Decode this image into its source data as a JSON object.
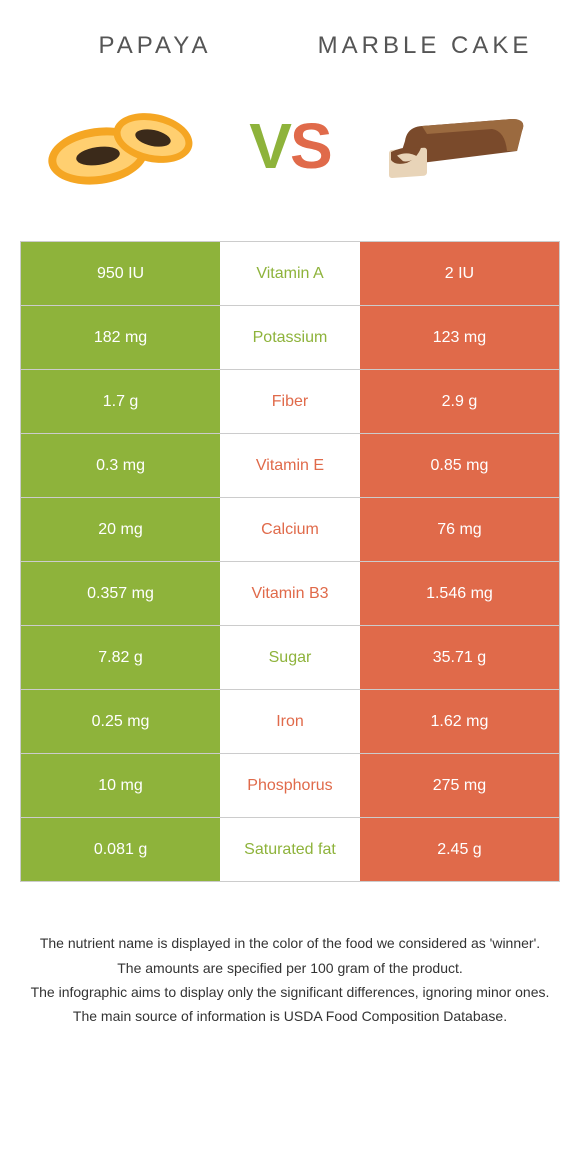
{
  "header": {
    "food_a": "Papaya",
    "food_b": "Marble cake",
    "vs_v": "V",
    "vs_s": "S"
  },
  "colors": {
    "green": "#8eb33b",
    "orange": "#e06a4a",
    "border": "#cccccc",
    "text": "#333333",
    "header_text": "#555555"
  },
  "table": {
    "rows": [
      {
        "left": "950 IU",
        "mid": "Vitamin A",
        "right": "2 IU",
        "winner": "a"
      },
      {
        "left": "182 mg",
        "mid": "Potassium",
        "right": "123 mg",
        "winner": "a"
      },
      {
        "left": "1.7 g",
        "mid": "Fiber",
        "right": "2.9 g",
        "winner": "b"
      },
      {
        "left": "0.3 mg",
        "mid": "Vitamin E",
        "right": "0.85 mg",
        "winner": "b"
      },
      {
        "left": "20 mg",
        "mid": "Calcium",
        "right": "76 mg",
        "winner": "b"
      },
      {
        "left": "0.357 mg",
        "mid": "Vitamin B3",
        "right": "1.546 mg",
        "winner": "b"
      },
      {
        "left": "7.82 g",
        "mid": "Sugar",
        "right": "35.71 g",
        "winner": "a"
      },
      {
        "left": "0.25 mg",
        "mid": "Iron",
        "right": "1.62 mg",
        "winner": "b"
      },
      {
        "left": "10 mg",
        "mid": "Phosphorus",
        "right": "275 mg",
        "winner": "b"
      },
      {
        "left": "0.081 g",
        "mid": "Saturated fat",
        "right": "2.45 g",
        "winner": "a"
      }
    ]
  },
  "footer": {
    "line1": "The nutrient name is displayed in the color of the food we considered as 'winner'.",
    "line2": "The amounts are specified per 100 gram of the product.",
    "line3": "The infographic aims to display only the significant differences, ignoring minor ones.",
    "line4": "The main source of information is USDA Food Composition Database."
  }
}
